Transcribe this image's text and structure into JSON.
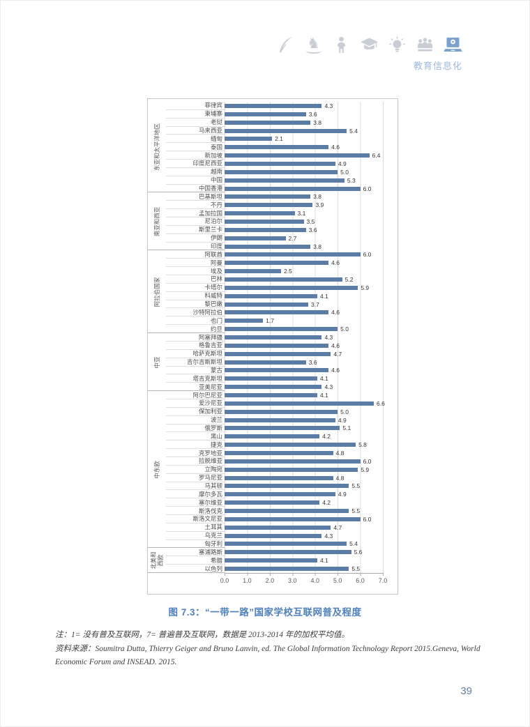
{
  "header": {
    "icons": [
      "quill-icon",
      "rocking-horse-icon",
      "child-icon",
      "graduation-cap-icon",
      "lightbulb-icon",
      "people-icon",
      "laptop-icon"
    ],
    "active_icon": "laptop-icon",
    "label": "教育信息化",
    "icon_color": "#c9ced6",
    "active_icon_color": "#7ba2cc",
    "label_color": "#9db9dd"
  },
  "chart_data": {
    "type": "bar",
    "orientation": "horizontal",
    "title": "图 7.3：“一带一路”国家学校互联网普及程度",
    "xlabel": "",
    "ylabel": "",
    "xlim": [
      0,
      7
    ],
    "ticks": [
      "0.0",
      "1.0",
      "2.0",
      "3.0",
      "4.0",
      "5.0",
      "6.0",
      "7.0"
    ],
    "grid": true,
    "bar_color": "#5b7da5",
    "groups": [
      {
        "region": "东亚和太平洋地区",
        "items": [
          {
            "name": "菲律宾",
            "value": 4.3
          },
          {
            "name": "柬埔寨",
            "value": 3.6
          },
          {
            "name": "老挝",
            "value": 3.8
          },
          {
            "name": "马来西亚",
            "value": 5.4
          },
          {
            "name": "缅甸",
            "value": 2.1
          },
          {
            "name": "泰国",
            "value": 4.6
          },
          {
            "name": "新加坡",
            "value": 6.4
          },
          {
            "name": "印度尼西亚",
            "value": 4.9
          },
          {
            "name": "越南",
            "value": 5.0
          },
          {
            "name": "中国",
            "value": 5.3
          },
          {
            "name": "中国香港",
            "value": 6.0
          }
        ]
      },
      {
        "region": "南亚和西亚",
        "items": [
          {
            "name": "巴基斯坦",
            "value": 3.8
          },
          {
            "name": "不丹",
            "value": 3.9
          },
          {
            "name": "孟加拉国",
            "value": 3.1
          },
          {
            "name": "尼泊尔",
            "value": 3.5
          },
          {
            "name": "斯里兰卡",
            "value": 3.6
          },
          {
            "name": "伊朗",
            "value": 2.7
          },
          {
            "name": "印度",
            "value": 3.8
          }
        ]
      },
      {
        "region": "阿拉伯国家",
        "items": [
          {
            "name": "阿联酋",
            "value": 6.0
          },
          {
            "name": "阿曼",
            "value": 4.6
          },
          {
            "name": "埃及",
            "value": 2.5
          },
          {
            "name": "巴林",
            "value": 5.2
          },
          {
            "name": "卡塔尔",
            "value": 5.9
          },
          {
            "name": "科威特",
            "value": 4.1
          },
          {
            "name": "黎巴嫩",
            "value": 3.7
          },
          {
            "name": "沙特阿拉伯",
            "value": 4.6
          },
          {
            "name": "也门",
            "value": 1.7
          },
          {
            "name": "约旦",
            "value": 5.0
          }
        ]
      },
      {
        "region": "中亚",
        "items": [
          {
            "name": "阿塞拜疆",
            "value": 4.3
          },
          {
            "name": "格鲁吉亚",
            "value": 4.6
          },
          {
            "name": "哈萨克斯坦",
            "value": 4.7
          },
          {
            "name": "吉尔吉斯斯坦",
            "value": 3.6
          },
          {
            "name": "蒙古",
            "value": 4.6
          },
          {
            "name": "塔吉克斯坦",
            "value": 4.1
          },
          {
            "name": "亚美尼亚",
            "value": 4.3
          }
        ]
      },
      {
        "region": "中东欧",
        "items": [
          {
            "name": "阿尔巴尼亚",
            "value": 4.1
          },
          {
            "name": "爱沙尼亚",
            "value": 6.6
          },
          {
            "name": "保加利亚",
            "value": 5.0
          },
          {
            "name": "波兰",
            "value": 4.9
          },
          {
            "name": "俄罗斯",
            "value": 5.1
          },
          {
            "name": "黑山",
            "value": 4.2
          },
          {
            "name": "捷克",
            "value": 5.8
          },
          {
            "name": "克罗地亚",
            "value": 4.8
          },
          {
            "name": "拉脱维亚",
            "value": 6.0
          },
          {
            "name": "立陶宛",
            "value": 5.9
          },
          {
            "name": "罗马尼亚",
            "value": 4.8
          },
          {
            "name": "马其顿",
            "value": 5.5
          },
          {
            "name": "摩尔多瓦",
            "value": 4.9
          },
          {
            "name": "塞尔维亚",
            "value": 4.2
          },
          {
            "name": "斯洛伐克",
            "value": 5.5
          },
          {
            "name": "斯洛文尼亚",
            "value": 6.0
          },
          {
            "name": "土耳其",
            "value": 4.7
          },
          {
            "name": "乌克兰",
            "value": 4.3
          },
          {
            "name": "匈牙利",
            "value": 5.4
          }
        ]
      },
      {
        "region": "北美和西欧",
        "items": [
          {
            "name": "塞浦路斯",
            "value": 5.6
          },
          {
            "name": "希腊",
            "value": 4.1
          },
          {
            "name": "以色列",
            "value": 5.5
          }
        ]
      }
    ]
  },
  "caption": "图 7.3：“一带一路”国家学校互联网普及程度",
  "notes": {
    "note": "注：1= 没有普及互联网，7= 普遍普及互联网，数据是 2013-2014 年的加权平均值。",
    "source": "资料来源：Soumitra Dutta, Thierry Geiger and Bruno Lanvin, ed. The Global Information Technology Report 2015.Geneva, World Economic Forum and INSEAD. 2015."
  },
  "page_number": "39"
}
